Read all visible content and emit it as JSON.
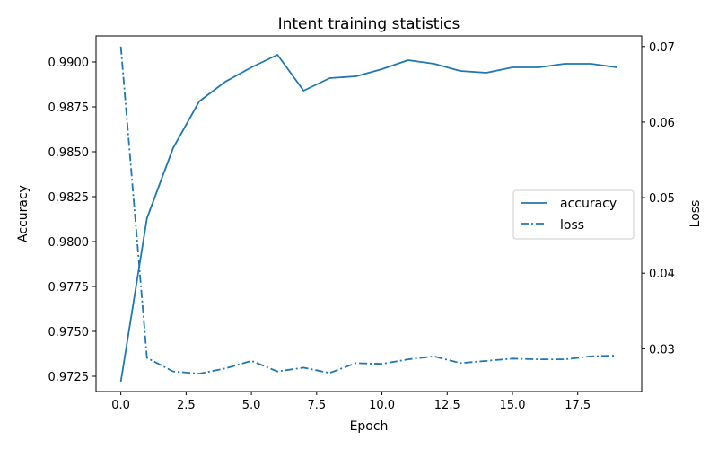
{
  "chart_data": {
    "type": "line",
    "title": "Intent training statistics",
    "xlabel": "Epoch",
    "ylabel_left": "Accuracy",
    "ylabel_right": "Loss",
    "xlim": [
      -0.95,
      19.95
    ],
    "ylim_left": [
      0.97165,
      0.99145
    ],
    "ylim_right": [
      0.02434,
      0.0714
    ],
    "x_ticks": [
      0.0,
      2.5,
      5.0,
      7.5,
      10.0,
      12.5,
      15.0,
      17.5
    ],
    "x_tick_labels": [
      "0.0",
      "2.5",
      "5.0",
      "7.5",
      "10.0",
      "12.5",
      "15.0",
      "17.5"
    ],
    "y_left_ticks": [
      0.9725,
      0.975,
      0.9775,
      0.98,
      0.9825,
      0.985,
      0.9875,
      0.99
    ],
    "y_left_tick_labels": [
      "0.9725",
      "0.9750",
      "0.9775",
      "0.9800",
      "0.9825",
      "0.9850",
      "0.9875",
      "0.9900"
    ],
    "y_right_ticks": [
      0.03,
      0.04,
      0.05,
      0.06,
      0.07
    ],
    "y_right_tick_labels": [
      "0.03",
      "0.04",
      "0.05",
      "0.06",
      "0.07"
    ],
    "legend_position": "center-right",
    "grid": false,
    "x": [
      0,
      1,
      2,
      3,
      4,
      5,
      6,
      7,
      8,
      9,
      10,
      11,
      12,
      13,
      14,
      15,
      16,
      17,
      18,
      19
    ],
    "series": [
      {
        "name": "accuracy",
        "axis": "left",
        "style": "solid",
        "color": "#1f77b4",
        "values": [
          0.9722,
          0.9813,
          0.9852,
          0.9878,
          0.9889,
          0.9897,
          0.9904,
          0.9884,
          0.9891,
          0.9892,
          0.9896,
          0.9901,
          0.9899,
          0.9895,
          0.9894,
          0.9897,
          0.9897,
          0.9899,
          0.9899,
          0.9897
        ]
      },
      {
        "name": "loss",
        "axis": "right",
        "style": "dashdot",
        "color": "#1f77b4",
        "values": [
          0.07,
          0.0288,
          0.027,
          0.0267,
          0.0274,
          0.0284,
          0.027,
          0.0275,
          0.0268,
          0.0281,
          0.028,
          0.0286,
          0.029,
          0.0281,
          0.0284,
          0.0287,
          0.0286,
          0.0286,
          0.029,
          0.0291
        ]
      }
    ]
  }
}
